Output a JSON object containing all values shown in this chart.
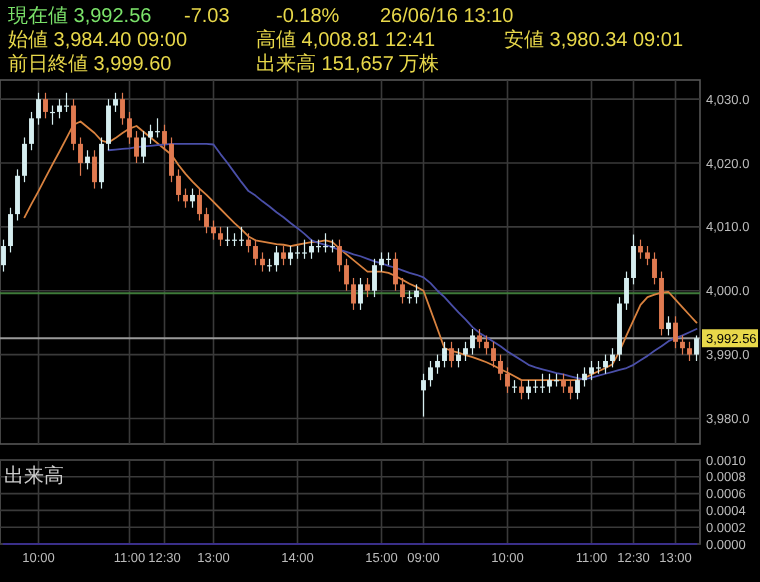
{
  "chart_data": [
    {
      "type": "candlestick",
      "annotations": [
        "現在値 3,992.56",
        "-7.03",
        "-0.18%",
        "26/06/16 13:10",
        "始値 3,984.40 09:00",
        "高値 4,008.81 12:41",
        "安値 3,980.34 09:01",
        "前日終値 3,999.60",
        "出来高 151,657 万株"
      ],
      "categories": [
        null,
        null,
        null,
        null,
        null,
        null,
        null,
        null,
        null,
        null,
        null,
        null,
        null,
        null,
        null,
        null,
        null,
        null,
        null,
        null,
        null,
        null,
        null,
        null,
        null,
        null,
        null,
        null,
        null,
        null,
        null,
        null,
        null,
        null,
        null,
        null,
        null,
        null,
        null,
        null,
        null,
        null,
        null,
        null,
        null,
        null,
        null,
        null,
        null,
        null,
        null,
        null,
        null,
        null,
        null,
        null,
        null,
        null,
        null,
        null,
        null,
        null,
        null,
        null,
        null,
        null,
        null,
        null,
        null,
        null,
        null,
        null,
        null,
        null,
        null,
        null,
        null,
        null,
        null,
        null,
        null,
        null,
        null,
        null,
        null,
        null,
        null,
        null,
        null,
        null,
        null,
        null,
        null,
        null,
        null,
        null,
        null,
        null,
        null,
        null
      ],
      "ohlc": [
        [
          4004,
          4008,
          4003,
          4007
        ],
        [
          4007,
          4013,
          4006,
          4012
        ],
        [
          4012,
          4019,
          4011,
          4018
        ],
        [
          4018,
          4024,
          4017,
          4023
        ],
        [
          4023,
          4028,
          4022,
          4027
        ],
        [
          4027,
          4031,
          4026,
          4030
        ],
        [
          4030,
          4031,
          4027,
          4028
        ],
        [
          4028,
          4029,
          4026,
          4028
        ],
        [
          4028,
          4030,
          4027,
          4029
        ],
        [
          4029,
          4031,
          4028,
          4029
        ],
        [
          4029,
          4030,
          4022,
          4023
        ],
        [
          4023,
          4024,
          4018,
          4020
        ],
        [
          4020,
          4022,
          4019,
          4021
        ],
        [
          4021,
          4022,
          4016,
          4017
        ],
        [
          4017,
          4024,
          4016,
          4023
        ],
        [
          4023,
          4030,
          4022,
          4029
        ],
        [
          4029,
          4031,
          4028,
          4030
        ],
        [
          4030,
          4031,
          4026,
          4027
        ],
        [
          4027,
          4028,
          4023,
          4024
        ],
        [
          4024,
          4025,
          4020,
          4021
        ],
        [
          4021,
          4025,
          4020,
          4024
        ],
        [
          4024,
          4026,
          4023,
          4025
        ],
        [
          4025,
          4027,
          4024,
          4025
        ],
        [
          4025,
          4026,
          4022,
          4023
        ],
        [
          4023,
          4024,
          4017,
          4018
        ],
        [
          4018,
          4019,
          4014,
          4015
        ],
        [
          4015,
          4016,
          4013,
          4014
        ],
        [
          4014,
          4016,
          4013,
          4015
        ],
        [
          4015,
          4016,
          4011,
          4012
        ],
        [
          4012,
          4013,
          4009,
          4010
        ],
        [
          4010,
          4011,
          4008,
          4009
        ],
        [
          4009,
          4010,
          4007,
          4008
        ],
        [
          4008,
          4010,
          4007,
          4008
        ],
        [
          4008,
          4009,
          4007,
          4008
        ],
        [
          4008,
          4010,
          4007,
          4008
        ],
        [
          4008,
          4009,
          4006,
          4007
        ],
        [
          4007,
          4008,
          4004,
          4005
        ],
        [
          4005,
          4006,
          4003,
          4004
        ],
        [
          4004,
          4005,
          4003,
          4004
        ],
        [
          4004,
          4007,
          4003,
          4006
        ],
        [
          4006,
          4007,
          4004,
          4005
        ],
        [
          4005,
          4007,
          4004,
          4006
        ],
        [
          4006,
          4007,
          4005,
          4006
        ],
        [
          4006,
          4008,
          4005,
          4006
        ],
        [
          4006,
          4008,
          4005,
          4007
        ],
        [
          4007,
          4008,
          4006,
          4007
        ],
        [
          4007,
          4009,
          4006,
          4007
        ],
        [
          4007,
          4008,
          4006,
          4007
        ],
        [
          4007,
          4008,
          4003,
          4004
        ],
        [
          4004,
          4005,
          4000,
          4001
        ],
        [
          4001,
          4002,
          3997,
          3998
        ],
        [
          3998,
          4002,
          3997,
          4001
        ],
        [
          4001,
          4002,
          3999,
          4000
        ],
        [
          4000,
          4005,
          3999,
          4004
        ],
        [
          4004,
          4006,
          4003,
          4005
        ],
        [
          4005,
          4006,
          4004,
          4005
        ],
        [
          4005,
          4006,
          4000,
          4001
        ],
        [
          4001,
          4002,
          3998,
          3999
        ],
        [
          3999,
          4000,
          3998,
          3999
        ],
        [
          3999,
          4001,
          3998,
          4000
        ],
        [
          3984.4,
          3987,
          3980.3,
          3986
        ],
        [
          3986,
          3989,
          3985,
          3988
        ],
        [
          3988,
          3990,
          3987,
          3989
        ],
        [
          3989,
          3992,
          3988,
          3991
        ],
        [
          3991,
          3992,
          3988,
          3989
        ],
        [
          3989,
          3991,
          3988,
          3990
        ],
        [
          3990,
          3992,
          3989,
          3991
        ],
        [
          3991,
          3994,
          3990,
          3993
        ],
        [
          3993,
          3994,
          3991,
          3992
        ],
        [
          3992,
          3993,
          3990,
          3991
        ],
        [
          3991,
          3992,
          3988,
          3989
        ],
        [
          3989,
          3990,
          3986,
          3987
        ],
        [
          3987,
          3988,
          3984,
          3985
        ],
        [
          3985,
          3986,
          3984,
          3985
        ],
        [
          3985,
          3986,
          3983,
          3984
        ],
        [
          3984,
          3986,
          3983,
          3985
        ],
        [
          3985,
          3986,
          3984,
          3985
        ],
        [
          3985,
          3987,
          3984,
          3985
        ],
        [
          3985,
          3987,
          3984,
          3986
        ],
        [
          3986,
          3987,
          3985,
          3986
        ],
        [
          3986,
          3987,
          3984,
          3985
        ],
        [
          3985,
          3986,
          3983,
          3984
        ],
        [
          3984,
          3987,
          3983,
          3986
        ],
        [
          3986,
          3988,
          3985,
          3987
        ],
        [
          3987,
          3989,
          3986,
          3988
        ],
        [
          3988,
          3989,
          3987,
          3988
        ],
        [
          3988,
          3990,
          3987,
          3989
        ],
        [
          3989,
          3991,
          3988,
          3990
        ],
        [
          3990,
          3999,
          3989,
          3998
        ],
        [
          3998,
          4003,
          3997,
          4002
        ],
        [
          4002,
          4008.8,
          4001,
          4007
        ],
        [
          4007,
          4008,
          4005,
          4006
        ],
        [
          4006,
          4007,
          4004,
          4005
        ],
        [
          4005,
          4006,
          4001,
          4002
        ],
        [
          4002,
          4003,
          3993,
          3994
        ],
        [
          3994,
          3996,
          3993,
          3995
        ],
        [
          3995,
          3996,
          3991,
          3992
        ],
        [
          3992,
          3993,
          3990,
          3991
        ],
        [
          3991,
          3992,
          3989,
          3990
        ],
        [
          3990,
          3993,
          3989,
          3992.56
        ]
      ],
      "series": [
        {
          "type": "line",
          "color": "#d9823f",
          "values": [
            null,
            null,
            null,
            4011.5,
            4013.6,
            4015.6,
            4017.7,
            4019.8,
            4021.8,
            4023.9,
            4026,
            4026.5,
            4025.6,
            4024.7,
            4023.5,
            4023.2,
            4023.9,
            4024.7,
            4025.4,
            4025.8,
            4024.9,
            4024,
            4023.1,
            4022.2,
            4021.3,
            4019.7,
            4018.3,
            4017.1,
            4016,
            4015,
            4013.9,
            4012.8,
            4011.7,
            4010.6,
            4009.6,
            4008.5,
            4007.9,
            4007.7,
            4007.5,
            4007.3,
            4007.2,
            4007,
            4007.2,
            4007.4,
            4007.6,
            4007.7,
            4007.9,
            4007.6,
            4006.6,
            4005.7,
            4004.8,
            4003.9,
            4003,
            4003,
            4003,
            4002.8,
            4002.3,
            4001.7,
            4001.1,
            4000.6,
            4000,
            3997,
            3994,
            3991,
            3990.6,
            3990.3,
            3989.9,
            3989.6,
            3989.2,
            3988.8,
            3988.3,
            3987.7,
            3987.2,
            3986.6,
            3986,
            3986,
            3986,
            3986,
            3986,
            3986,
            3986,
            3986,
            3986,
            3986.3,
            3986.9,
            3987.4,
            3987.9,
            3988.5,
            3990.5,
            3993,
            3995.4,
            3997.8,
            3999,
            3999.4,
            3999.7,
            3999.8,
            3998.6,
            3997.4,
            3996.2,
            3995
          ]
        },
        {
          "type": "line",
          "color": "#4a4fa8",
          "values": [
            null,
            null,
            null,
            null,
            null,
            null,
            null,
            null,
            null,
            null,
            null,
            null,
            null,
            null,
            null,
            4022,
            4022.1,
            4022.2,
            4022.3,
            4022.5,
            4022.6,
            4022.7,
            4022.8,
            4022.9,
            4023,
            4023,
            4023,
            4023,
            4023,
            4023,
            4022.9,
            4021.4,
            4020,
            4018.5,
            4017,
            4015.6,
            4014.9,
            4014,
            4013.2,
            4012.3,
            4011.5,
            4010.6,
            4009.8,
            4008.9,
            4007.9,
            4007.5,
            4007.2,
            4006.8,
            4006.4,
            4006.1,
            4005.7,
            4005.4,
            4005,
            4004.6,
            4004.3,
            4003.9,
            4003.6,
            4003.2,
            4002.8,
            4002.5,
            4002.1,
            4001.2,
            4000,
            3999,
            3997.8,
            3996.6,
            3995.5,
            3994.3,
            3993.4,
            3992.7,
            3992,
            3991.3,
            3990.5,
            3989.8,
            3989.1,
            3988.4,
            3988,
            3987.7,
            3987.4,
            3987.1,
            3986.9,
            3986.6,
            3986.3,
            3986.1,
            3986.4,
            3986.7,
            3987,
            3987.3,
            3987.6,
            3987.9,
            3988.4,
            3989.1,
            3989.8,
            3990.6,
            3991.3,
            3992.1,
            3992.6,
            3993,
            3993.5,
            3994
          ]
        }
      ],
      "ylim": [
        3976,
        4033
      ],
      "yticks": [
        {
          "value": 3980,
          "label": "3,980.0"
        },
        {
          "value": 3990,
          "label": "3,990.0"
        },
        {
          "value": 4000,
          "label": "4,000.0"
        },
        {
          "value": 4010,
          "label": "4,010.0"
        },
        {
          "value": 4020,
          "label": "4,020.0"
        },
        {
          "value": 4030,
          "label": "4,030.0"
        }
      ],
      "ref_lines": [
        {
          "axis": "y",
          "value": 3999.6,
          "color": "#3f7a3a"
        },
        {
          "axis": "y",
          "value": 3992.56,
          "label": "3,992.56",
          "color": "#9a9a9a"
        }
      ],
      "tick_labels": "y",
      "grid": true
    },
    {
      "type": "line",
      "ylabel": "出来高",
      "categories": [
        null,
        null,
        null,
        null,
        null,
        "10:00",
        null,
        null,
        null,
        null,
        null,
        null,
        null,
        null,
        null,
        null,
        null,
        null,
        "11:00",
        null,
        null,
        null,
        null,
        "12:30",
        null,
        null,
        null,
        null,
        null,
        null,
        "13:00",
        null,
        null,
        null,
        null,
        null,
        null,
        null,
        null,
        null,
        null,
        null,
        "14:00",
        null,
        null,
        null,
        null,
        null,
        null,
        null,
        null,
        null,
        null,
        null,
        "15:00",
        null,
        null,
        null,
        null,
        null,
        "09:00",
        null,
        null,
        null,
        null,
        null,
        null,
        null,
        null,
        null,
        null,
        null,
        "10:00",
        null,
        null,
        null,
        null,
        null,
        null,
        null,
        null,
        null,
        null,
        null,
        "11:00",
        null,
        null,
        null,
        null,
        null,
        "12:30",
        null,
        null,
        null,
        null,
        null,
        "13:00",
        null,
        null,
        null
      ],
      "series": [
        {
          "color": "#3a2f8a",
          "values": [
            0,
            0,
            0,
            0,
            0,
            0,
            0,
            0,
            0,
            0,
            0,
            0,
            0,
            0,
            0,
            0,
            0,
            0,
            0,
            0,
            0,
            0,
            0,
            0,
            0,
            0,
            0,
            0,
            0,
            0,
            0,
            0,
            0,
            0,
            0,
            0,
            0,
            0,
            0,
            0,
            0,
            0,
            0,
            0,
            0,
            0,
            0,
            0,
            0,
            0,
            0,
            0,
            0,
            0,
            0,
            0,
            0,
            0,
            0,
            0,
            0,
            0,
            0,
            0,
            0,
            0,
            0,
            0,
            0,
            0,
            0,
            0,
            0,
            0,
            0,
            0,
            0,
            0,
            0,
            0,
            0,
            0,
            0,
            0,
            0,
            0,
            0,
            0,
            0,
            0,
            0,
            0,
            0,
            0,
            0,
            0,
            0,
            0,
            0,
            0
          ]
        }
      ],
      "ylim": [
        0,
        0.001
      ],
      "yticks": [
        {
          "value": 0,
          "label": "0.0000"
        },
        {
          "value": 0.0002,
          "label": "0.0002"
        },
        {
          "value": 0.0004,
          "label": "0.0004"
        },
        {
          "value": 0.0006,
          "label": "0.0006"
        },
        {
          "value": 0.0008,
          "label": "0.0008"
        },
        {
          "value": 0.001,
          "label": "0.0010"
        }
      ],
      "grid": true
    }
  ]
}
